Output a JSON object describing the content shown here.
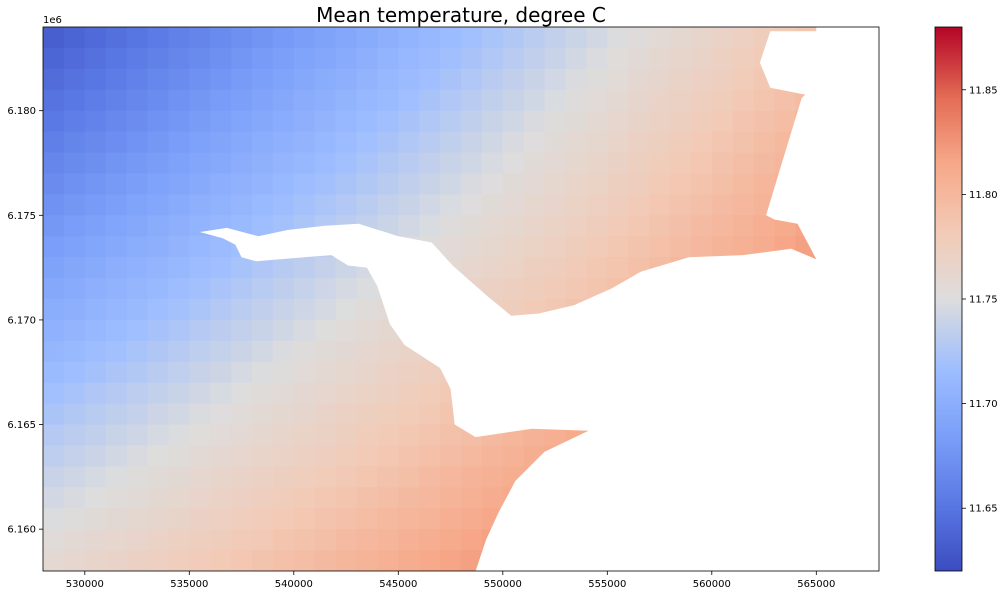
{
  "chart_data": {
    "type": "heatmap",
    "title": "Mean temperature, degree C",
    "xlabel": "",
    "ylabel": "",
    "y_offset_label": "1e6",
    "xlim": [
      528000,
      568000
    ],
    "ylim": [
      6158000,
      6184000
    ],
    "x_ticks": [
      530000,
      535000,
      540000,
      545000,
      550000,
      555000,
      560000,
      565000
    ],
    "x_tick_labels": [
      "530000",
      "535000",
      "540000",
      "545000",
      "550000",
      "555000",
      "560000",
      "565000"
    ],
    "y_ticks": [
      6.16,
      6.165,
      6.17,
      6.175,
      6.18
    ],
    "y_tick_labels": [
      "6.160",
      "6.165",
      "6.170",
      "6.175",
      "6.180"
    ],
    "colorbar": {
      "colormap": "coolwarm",
      "vmin": 11.62,
      "vmax": 11.88,
      "ticks": [
        11.65,
        11.7,
        11.75,
        11.8,
        11.85
      ],
      "tick_labels": [
        "11.65",
        "11.70",
        "11.75",
        "11.80",
        "11.85"
      ]
    },
    "grid_cells": {
      "nx": 40,
      "ny": 26
    },
    "field": {
      "description_of_values": "temperature increases linearly toward the south-east",
      "corner_values": {
        "top_left": 11.63,
        "top_right": 11.8,
        "bottom_left": 11.76,
        "bottom_right": 11.88
      }
    },
    "masked_region": "white water area (Tagus estuary) with no data, covering the east and middle of the map",
    "mask_polygon_data_units": [
      [
        535500,
        6174200
      ],
      [
        536600,
        6173900
      ],
      [
        537200,
        6173600
      ],
      [
        537500,
        6173000
      ],
      [
        538200,
        6172800
      ],
      [
        540500,
        6173000
      ],
      [
        541800,
        6173100
      ],
      [
        542600,
        6172600
      ],
      [
        543500,
        6172500
      ],
      [
        544000,
        6171600
      ],
      [
        544600,
        6169800
      ],
      [
        545300,
        6168800
      ],
      [
        547000,
        6167700
      ],
      [
        547500,
        6166700
      ],
      [
        547700,
        6165000
      ],
      [
        548700,
        6164400
      ],
      [
        551400,
        6164800
      ],
      [
        554100,
        6164700
      ],
      [
        552000,
        6163700
      ],
      [
        550600,
        6162300
      ],
      [
        549800,
        6160800
      ],
      [
        549200,
        6159500
      ],
      [
        548700,
        6158000
      ],
      [
        568000,
        6158000
      ],
      [
        568000,
        6181700
      ],
      [
        566000,
        6181800
      ],
      [
        565000,
        6181300
      ],
      [
        564300,
        6180600
      ],
      [
        563200,
        6177000
      ],
      [
        562600,
        6175000
      ],
      [
        563000,
        6174800
      ],
      [
        564100,
        6174600
      ],
      [
        565000,
        6172900
      ],
      [
        563800,
        6173400
      ],
      [
        561500,
        6173100
      ],
      [
        558900,
        6173000
      ],
      [
        556600,
        6172300
      ],
      [
        555200,
        6171500
      ],
      [
        553400,
        6170700
      ],
      [
        551700,
        6170300
      ],
      [
        550400,
        6170200
      ],
      [
        549300,
        6171100
      ],
      [
        547600,
        6172600
      ],
      [
        546600,
        6173700
      ],
      [
        545000,
        6174000
      ],
      [
        543100,
        6174600
      ],
      [
        541500,
        6174500
      ],
      [
        539700,
        6174300
      ],
      [
        538300,
        6174000
      ],
      [
        536800,
        6174400
      ]
    ],
    "mask_upper_polygon_data_units": [
      [
        565000,
        6183800
      ],
      [
        562800,
        6183800
      ],
      [
        562300,
        6182300
      ],
      [
        562800,
        6181100
      ],
      [
        564300,
        6180800
      ],
      [
        566200,
        6180500
      ],
      [
        567200,
        6180300
      ],
      [
        568000,
        6180200
      ],
      [
        568000,
        6184000
      ],
      [
        565000,
        6184000
      ]
    ]
  }
}
